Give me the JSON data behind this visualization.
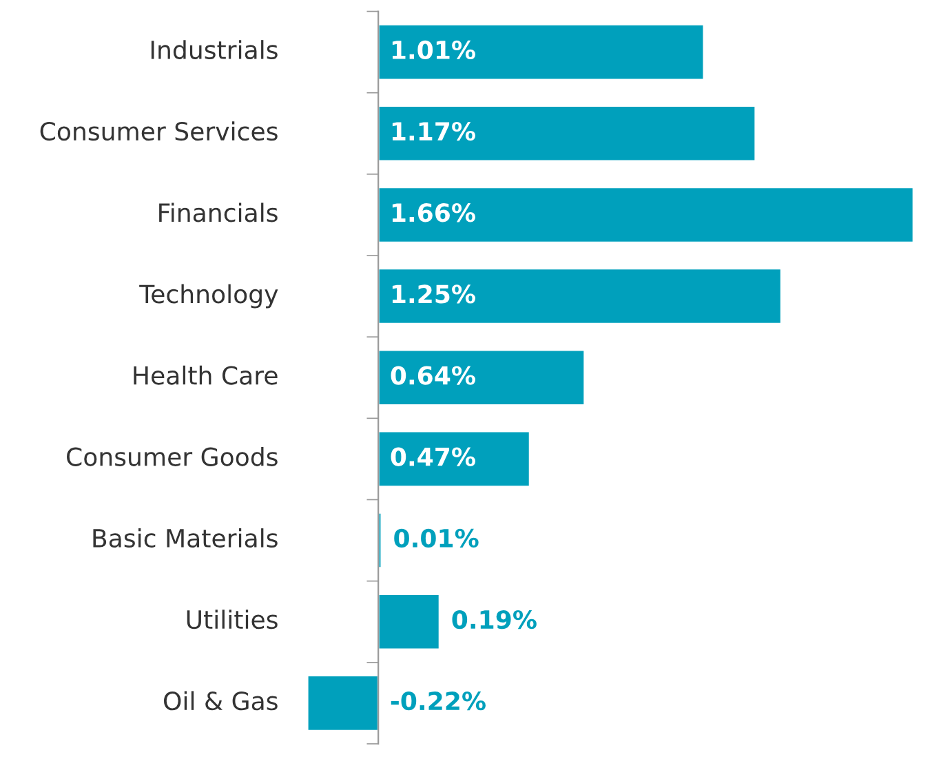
{
  "chart_data": {
    "type": "bar",
    "orientation": "horizontal",
    "categories": [
      "Industrials",
      "Consumer Services",
      "Financials",
      "Technology",
      "Health Care",
      "Consumer Goods",
      "Basic Materials",
      "Utilities",
      "Oil & Gas"
    ],
    "values": [
      1.01,
      1.17,
      1.66,
      1.25,
      0.64,
      0.47,
      0.01,
      0.19,
      -0.22
    ],
    "value_labels": [
      "1.01%",
      "1.17%",
      "1.66%",
      "1.25%",
      "0.64%",
      "0.47%",
      "0.01%",
      "0.19%",
      "-0.22%"
    ],
    "color": "#00a0bc",
    "legend": false
  }
}
